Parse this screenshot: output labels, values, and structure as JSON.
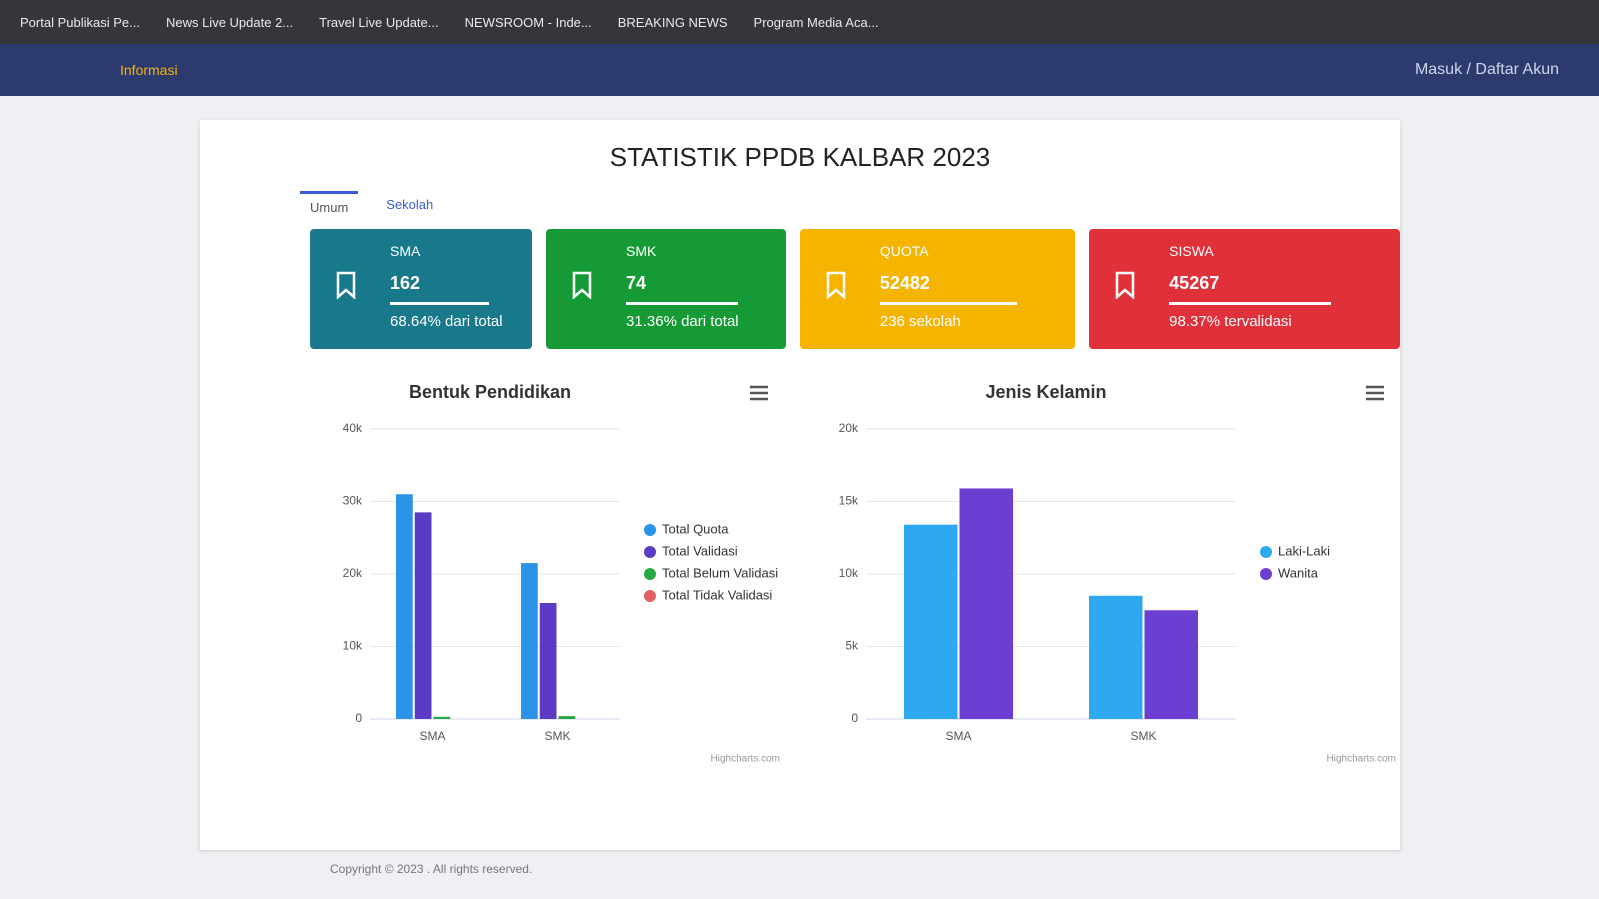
{
  "browser": {
    "bookmarks": [
      "Portal Publikasi Pe...",
      "News Live Update 2...",
      "Travel Live Update...",
      "NEWSROOM - Inde...",
      "BREAKING NEWS",
      "Program Media Aca..."
    ]
  },
  "nav": {
    "menu": [
      "Informasi"
    ],
    "login": "Masuk / Daftar Akun"
  },
  "page": {
    "title": "STATISTIK PPDB KALBAR 2023",
    "tabs": [
      "Umum",
      "Sekolah"
    ],
    "cards": [
      {
        "label": "SMA",
        "value": 162,
        "note": "68.64% dari total",
        "color": "#17798a"
      },
      {
        "label": "SMK",
        "value": 74,
        "note": "31.36% dari total",
        "color": "#169a35"
      },
      {
        "label": "QUOTA",
        "value": 52482,
        "note": "236 sekolah",
        "color": "#f4b400"
      },
      {
        "label": "SISWA",
        "value": 45267,
        "note": "98.37% tervalidasi",
        "color": "#e0303a"
      }
    ],
    "footer": "Copyright © 2023 . All rights reserved."
  },
  "chart_data": [
    {
      "type": "bar",
      "title": "Bentuk Pendidikan",
      "categories": [
        "SMA",
        "SMK"
      ],
      "series": [
        {
          "name": "Total Quota",
          "color": "#2b93e8",
          "values": [
            31000,
            21500
          ]
        },
        {
          "name": "Total Validasi",
          "color": "#5b3bc4",
          "values": [
            28500,
            16000
          ]
        },
        {
          "name": "Total Belum Validasi",
          "color": "#28a745",
          "values": [
            300,
            400
          ]
        },
        {
          "name": "Total Tidak Validasi",
          "color": "#e06060",
          "values": [
            0,
            0
          ]
        }
      ],
      "ylim": [
        0,
        40000
      ],
      "yticks": [
        0,
        {
          "value": 10000,
          "label": "10k"
        },
        {
          "value": 20000,
          "label": "20k"
        },
        {
          "value": 30000,
          "label": "30k"
        },
        {
          "value": 40000,
          "label": "40k"
        }
      ],
      "grid": true,
      "legend": "right",
      "credits": "Highcharts.com"
    },
    {
      "type": "bar",
      "title": "Jenis Kelamin",
      "categories": [
        "SMA",
        "SMK"
      ],
      "series": [
        {
          "name": "Laki-Laki",
          "color": "#2ea8f0",
          "values": [
            13400,
            8500
          ]
        },
        {
          "name": "Wanita",
          "color": "#6a3fd1",
          "values": [
            15900,
            7500
          ]
        }
      ],
      "ylim": [
        0,
        20000
      ],
      "yticks": [
        0,
        {
          "value": 5000,
          "label": "5k"
        },
        {
          "value": 10000,
          "label": "10k"
        },
        {
          "value": 15000,
          "label": "15k"
        },
        {
          "value": 20000,
          "label": "20k"
        }
      ],
      "grid": true,
      "legend": "right",
      "credits": "Highcharts.com"
    }
  ]
}
